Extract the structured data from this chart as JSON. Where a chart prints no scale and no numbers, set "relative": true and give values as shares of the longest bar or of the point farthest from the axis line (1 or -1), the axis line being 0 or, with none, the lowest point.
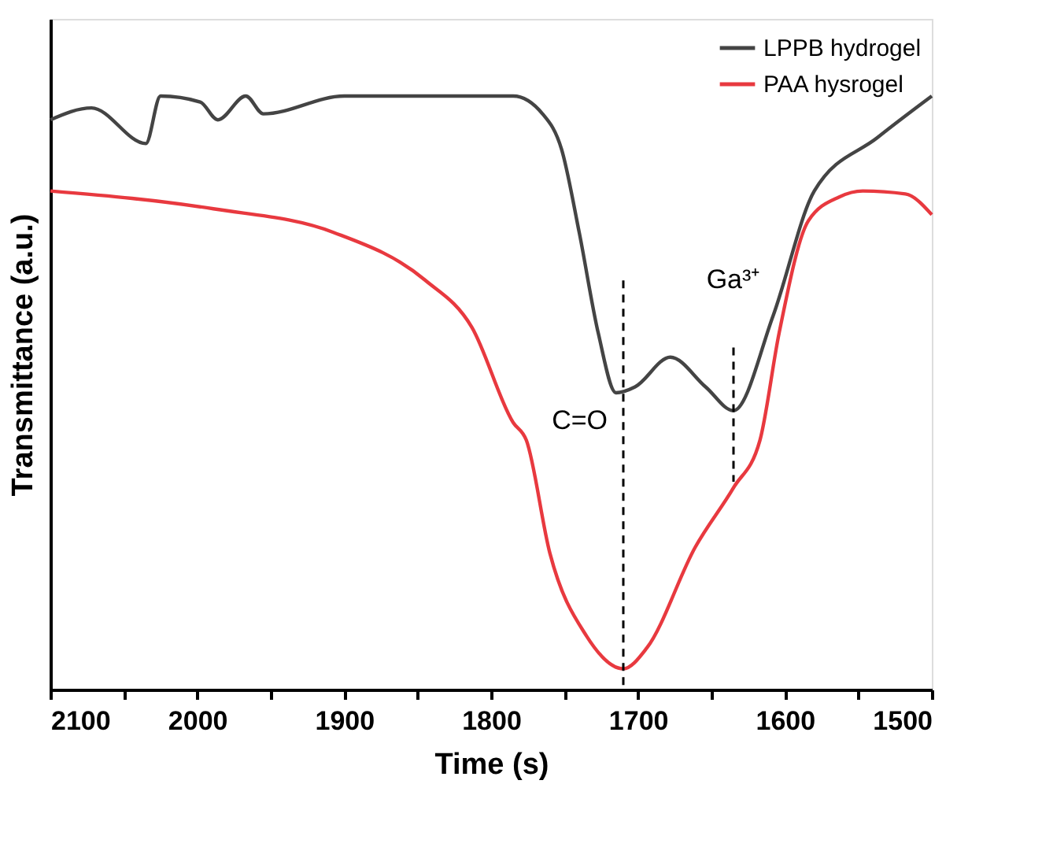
{
  "chart_data": {
    "type": "line",
    "relative": true,
    "xlabel": "Time (s)",
    "ylabel": "Transmittance (a.u.)",
    "xlim": [
      2100,
      1500
    ],
    "xticks": [
      2100,
      {
        "value": 2050,
        "label": null
      },
      2000,
      {
        "value": 1950,
        "label": null
      },
      1900,
      {
        "value": 1850,
        "label": null
      },
      1800,
      {
        "value": 1750,
        "label": null
      },
      1700,
      {
        "value": 1650,
        "label": null
      },
      1600,
      {
        "value": 1550,
        "label": null
      },
      1500
    ],
    "grid": false,
    "legend": "top right",
    "line_style": "solid",
    "marker": "none",
    "series": [
      {
        "name": "LPPB hydrogel",
        "color": "#444444",
        "x": [
          2100,
          2072,
          2035,
          2025,
          1998,
          1986,
          1967,
          1955,
          1900,
          1785,
          1765,
          1752,
          1740,
          1727,
          1715,
          1702,
          1678,
          1654,
          1635,
          1608,
          1580,
          1537,
          1500
        ],
        "values": [
          0.96,
          0.98,
          0.92,
          1.0,
          0.99,
          0.96,
          1.0,
          0.97,
          1.0,
          1.0,
          0.97,
          0.91,
          0.77,
          0.6,
          0.5,
          0.51,
          0.56,
          0.51,
          0.47,
          0.63,
          0.84,
          0.93,
          1.0
        ]
      },
      {
        "name": "PAA hysrogel",
        "color": "#e8393f",
        "x": [
          2100,
          1989,
          1907,
          1845,
          1813,
          1785,
          1776,
          1760,
          1735,
          1710,
          1694,
          1661,
          1635,
          1617,
          1604,
          1584,
          1563,
          1547,
          1518,
          1500
        ],
        "values": [
          0.84,
          0.81,
          0.77,
          0.69,
          0.61,
          0.45,
          0.42,
          0.23,
          0.09,
          0.035,
          0.07,
          0.24,
          0.34,
          0.42,
          0.6,
          0.79,
          0.83,
          0.84,
          0.835,
          0.8
        ]
      }
    ],
    "ref_lines": [
      {
        "axis": "x",
        "value": 1710,
        "label": "C=O",
        "color": "#000000",
        "line_style": "dashed"
      },
      {
        "axis": "x",
        "value": 1635,
        "label": "Ga³⁺",
        "color": "#000000",
        "line_style": "dashed"
      }
    ]
  }
}
